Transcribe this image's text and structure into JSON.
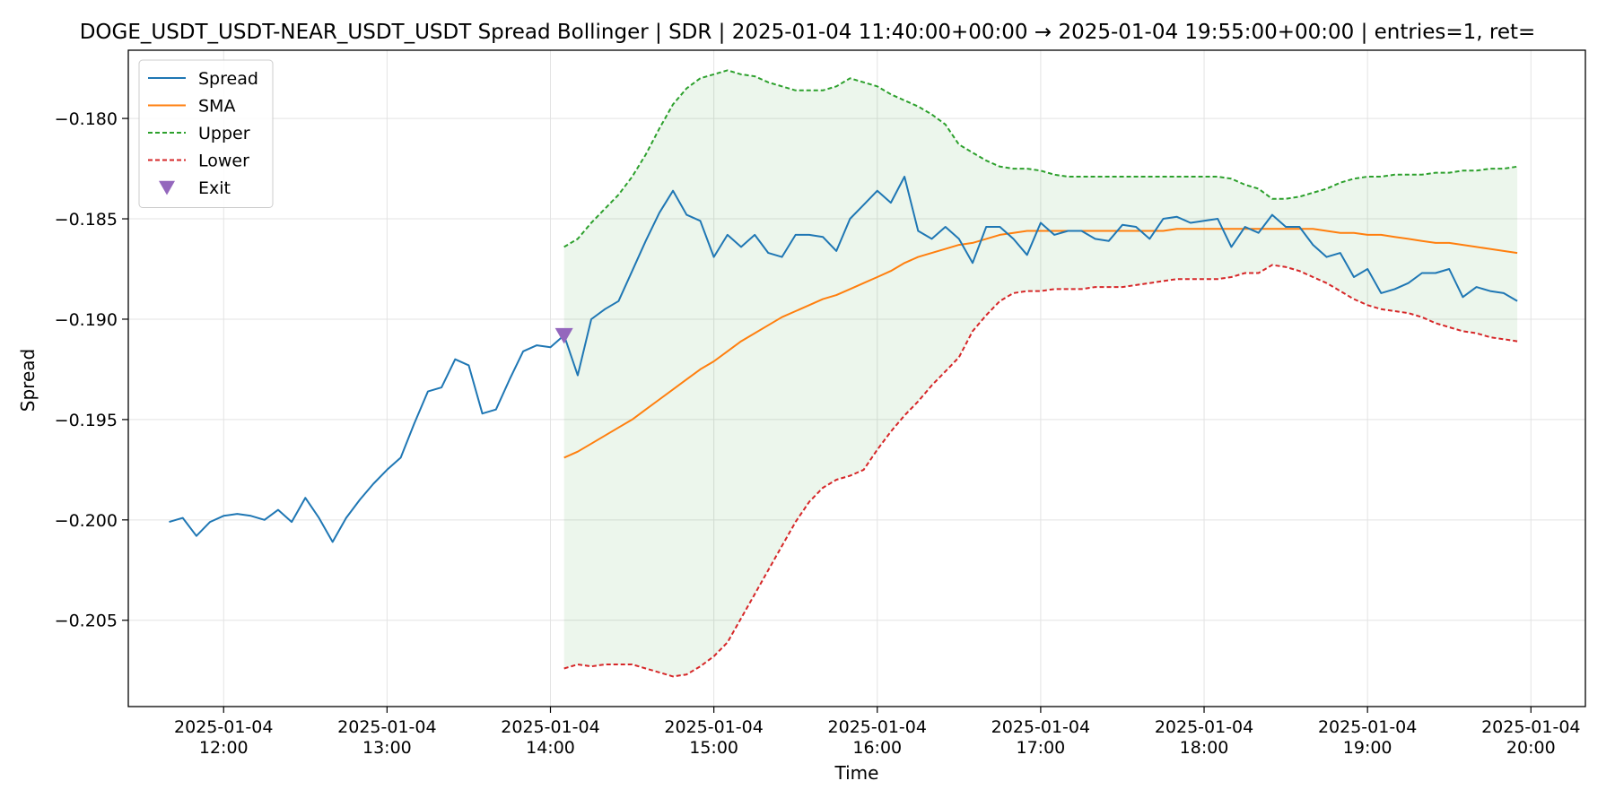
{
  "chart_data": {
    "type": "line",
    "title": "DOGE_USDT_USDT-NEAR_USDT_USDT Spread Bollinger  | SDR | 2025-01-04 11:40:00+00:00 → 2025-01-04 19:55:00+00:00 | entries=1, ret=",
    "xlabel": "Time",
    "ylabel": "Spread",
    "xlim": [
      "2025-01-04 11:25",
      "2025-01-04 20:20"
    ],
    "ylim": [
      -0.2093,
      -0.1766
    ],
    "grid": true,
    "legend_position": "top-left",
    "x_ticks": [
      {
        "t": "2025-01-04 12:00",
        "line1": "2025-01-04",
        "line2": "12:00"
      },
      {
        "t": "2025-01-04 13:00",
        "line1": "2025-01-04",
        "line2": "13:00"
      },
      {
        "t": "2025-01-04 14:00",
        "line1": "2025-01-04",
        "line2": "14:00"
      },
      {
        "t": "2025-01-04 15:00",
        "line1": "2025-01-04",
        "line2": "15:00"
      },
      {
        "t": "2025-01-04 16:00",
        "line1": "2025-01-04",
        "line2": "16:00"
      },
      {
        "t": "2025-01-04 17:00",
        "line1": "2025-01-04",
        "line2": "17:00"
      },
      {
        "t": "2025-01-04 18:00",
        "line1": "2025-01-04",
        "line2": "18:00"
      },
      {
        "t": "2025-01-04 19:00",
        "line1": "2025-01-04",
        "line2": "19:00"
      },
      {
        "t": "2025-01-04 20:00",
        "line1": "2025-01-04",
        "line2": "20:00"
      }
    ],
    "y_ticks": [
      {
        "v": -0.18,
        "label": "−0.180"
      },
      {
        "v": -0.185,
        "label": "−0.185"
      },
      {
        "v": -0.19,
        "label": "−0.190"
      },
      {
        "v": -0.195,
        "label": "−0.195"
      },
      {
        "v": -0.2,
        "label": "−0.200"
      },
      {
        "v": -0.205,
        "label": "−0.205"
      }
    ],
    "series": [
      {
        "name": "Spread",
        "color": "#1f77b4",
        "style": "solid",
        "start": "2025-01-04 11:40",
        "step_minutes": 5,
        "values": [
          -0.2001,
          -0.1999,
          -0.2008,
          -0.2001,
          -0.1998,
          -0.1997,
          -0.1998,
          -0.2,
          -0.1995,
          -0.2001,
          -0.1989,
          -0.1999,
          -0.2011,
          -0.1999,
          -0.199,
          -0.1982,
          -0.1975,
          -0.1969,
          -0.1952,
          -0.1936,
          -0.1934,
          -0.192,
          -0.1923,
          -0.1947,
          -0.1945,
          -0.193,
          -0.1916,
          -0.1913,
          -0.1914,
          -0.1908,
          -0.1928,
          -0.19,
          -0.1895,
          -0.1891,
          -0.1876,
          -0.1861,
          -0.1847,
          -0.1836,
          -0.1848,
          -0.1851,
          -0.1869,
          -0.1858,
          -0.1864,
          -0.1858,
          -0.1867,
          -0.1869,
          -0.1858,
          -0.1858,
          -0.1859,
          -0.1866,
          -0.185,
          -0.1843,
          -0.1836,
          -0.1842,
          -0.1829,
          -0.1856,
          -0.186,
          -0.1854,
          -0.186,
          -0.1872,
          -0.1854,
          -0.1854,
          -0.186,
          -0.1868,
          -0.1852,
          -0.1858,
          -0.1856,
          -0.1856,
          -0.186,
          -0.1861,
          -0.1853,
          -0.1854,
          -0.186,
          -0.185,
          -0.1849,
          -0.1852,
          -0.1851,
          -0.185,
          -0.1864,
          -0.1854,
          -0.1857,
          -0.1848,
          -0.1854,
          -0.1854,
          -0.1863,
          -0.1869,
          -0.1867,
          -0.1879,
          -0.1875,
          -0.1887,
          -0.1885,
          -0.1882,
          -0.1877,
          -0.1877,
          -0.1875,
          -0.1889,
          -0.1884,
          -0.1886,
          -0.1887,
          -0.1891
        ]
      },
      {
        "name": "SMA",
        "color": "#ff7f0e",
        "style": "solid",
        "start": "2025-01-04 14:05",
        "step_minutes": 5,
        "values": [
          -0.1969,
          -0.1966,
          -0.1962,
          -0.1958,
          -0.1954,
          -0.195,
          -0.1945,
          -0.194,
          -0.1935,
          -0.193,
          -0.1925,
          -0.1921,
          -0.1916,
          -0.1911,
          -0.1907,
          -0.1903,
          -0.1899,
          -0.1896,
          -0.1893,
          -0.189,
          -0.1888,
          -0.1885,
          -0.1882,
          -0.1879,
          -0.1876,
          -0.1872,
          -0.1869,
          -0.1867,
          -0.1865,
          -0.1863,
          -0.1862,
          -0.186,
          -0.1858,
          -0.1857,
          -0.1856,
          -0.1856,
          -0.1856,
          -0.1856,
          -0.1856,
          -0.1856,
          -0.1856,
          -0.1856,
          -0.1856,
          -0.1856,
          -0.1856,
          -0.1855,
          -0.1855,
          -0.1855,
          -0.1855,
          -0.1855,
          -0.1855,
          -0.1855,
          -0.1855,
          -0.1855,
          -0.1855,
          -0.1855,
          -0.1856,
          -0.1857,
          -0.1857,
          -0.1858,
          -0.1858,
          -0.1859,
          -0.186,
          -0.1861,
          -0.1862,
          -0.1862,
          -0.1863,
          -0.1864,
          -0.1865,
          -0.1866,
          -0.1867
        ]
      },
      {
        "name": "Upper",
        "color": "#2ca02c",
        "style": "dashed",
        "start": "2025-01-04 14:05",
        "step_minutes": 5,
        "values": [
          -0.1864,
          -0.186,
          -0.1852,
          -0.1845,
          -0.1838,
          -0.1829,
          -0.1818,
          -0.1805,
          -0.1793,
          -0.1785,
          -0.178,
          -0.1778,
          -0.1776,
          -0.1778,
          -0.1779,
          -0.1782,
          -0.1784,
          -0.1786,
          -0.1786,
          -0.1786,
          -0.1784,
          -0.178,
          -0.1782,
          -0.1784,
          -0.1788,
          -0.1791,
          -0.1794,
          -0.1798,
          -0.1803,
          -0.1813,
          -0.1817,
          -0.1821,
          -0.1824,
          -0.1825,
          -0.1825,
          -0.1826,
          -0.1828,
          -0.1829,
          -0.1829,
          -0.1829,
          -0.1829,
          -0.1829,
          -0.1829,
          -0.1829,
          -0.1829,
          -0.1829,
          -0.1829,
          -0.1829,
          -0.1829,
          -0.183,
          -0.1833,
          -0.1835,
          -0.184,
          -0.184,
          -0.1839,
          -0.1837,
          -0.1835,
          -0.1832,
          -0.183,
          -0.1829,
          -0.1829,
          -0.1828,
          -0.1828,
          -0.1828,
          -0.1827,
          -0.1827,
          -0.1826,
          -0.1826,
          -0.1825,
          -0.1825,
          -0.1824
        ]
      },
      {
        "name": "Lower",
        "color": "#d62728",
        "style": "dashed",
        "start": "2025-01-04 14:05",
        "step_minutes": 5,
        "values": [
          -0.2074,
          -0.2072,
          -0.2073,
          -0.2072,
          -0.2072,
          -0.2072,
          -0.2074,
          -0.2076,
          -0.2078,
          -0.2077,
          -0.2073,
          -0.2068,
          -0.2061,
          -0.2049,
          -0.2037,
          -0.2025,
          -0.2013,
          -0.2001,
          -0.1991,
          -0.1984,
          -0.198,
          -0.1978,
          -0.1975,
          -0.1965,
          -0.1956,
          -0.1948,
          -0.1941,
          -0.1933,
          -0.1926,
          -0.1919,
          -0.1906,
          -0.1898,
          -0.1891,
          -0.1887,
          -0.1886,
          -0.1886,
          -0.1885,
          -0.1885,
          -0.1885,
          -0.1884,
          -0.1884,
          -0.1884,
          -0.1883,
          -0.1882,
          -0.1881,
          -0.188,
          -0.188,
          -0.188,
          -0.188,
          -0.1879,
          -0.1877,
          -0.1877,
          -0.1873,
          -0.1874,
          -0.1876,
          -0.1879,
          -0.1882,
          -0.1886,
          -0.189,
          -0.1893,
          -0.1895,
          -0.1896,
          -0.1897,
          -0.1899,
          -0.1902,
          -0.1904,
          -0.1906,
          -0.1907,
          -0.1909,
          -0.191,
          -0.1911
        ]
      }
    ],
    "band_fill_color": "#2ca02c",
    "markers": [
      {
        "name": "Exit",
        "color": "#9467bd",
        "shape": "triangle-down",
        "x": "2025-01-04 14:05",
        "y": -0.1908
      }
    ]
  }
}
